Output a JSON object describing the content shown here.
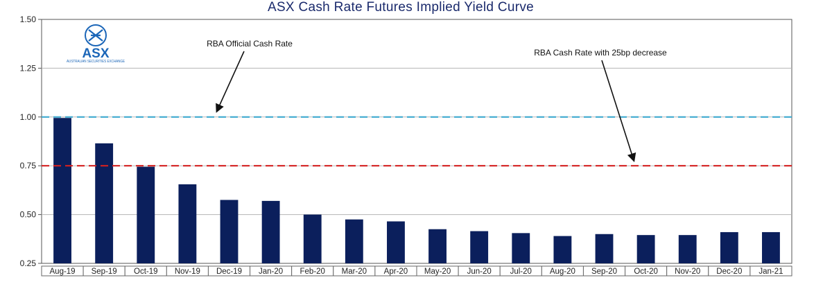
{
  "chart_data": {
    "type": "bar",
    "title": "ASX  Cash Rate Futures Implied Yield Curve",
    "xlabel": "",
    "ylabel": "",
    "ylim": [
      0.25,
      1.5
    ],
    "yticks": [
      "0.25",
      "0.50",
      "0.75",
      "1.00",
      "1.25",
      "1.50"
    ],
    "grid": true,
    "categories": [
      "Aug-19",
      "Sep-19",
      "Oct-19",
      "Nov-19",
      "Dec-19",
      "Jan-20",
      "Feb-20",
      "Mar-20",
      "Apr-20",
      "May-20",
      "Jun-20",
      "Jul-20",
      "Aug-20",
      "Sep-20",
      "Oct-20",
      "Nov-20",
      "Dec-20",
      "Jan-21"
    ],
    "values": [
      0.995,
      0.865,
      0.745,
      0.655,
      0.575,
      0.57,
      0.5,
      0.475,
      0.465,
      0.425,
      0.415,
      0.405,
      0.39,
      0.4,
      0.395,
      0.395,
      0.41,
      0.41
    ],
    "bar_color": "#0b1f5c",
    "reference_lines": [
      {
        "label": "RBA Official Cash Rate",
        "value": 1.0,
        "color": "#3fa9cf"
      },
      {
        "label": "RBA Cash Rate with 25bp decrease",
        "value": 0.75,
        "color": "#d42020"
      }
    ]
  },
  "logo": {
    "name": "ASX",
    "subtitle": "AUSTRALIAN SECURITIES EXCHANGE",
    "color": "#1b66b8"
  }
}
